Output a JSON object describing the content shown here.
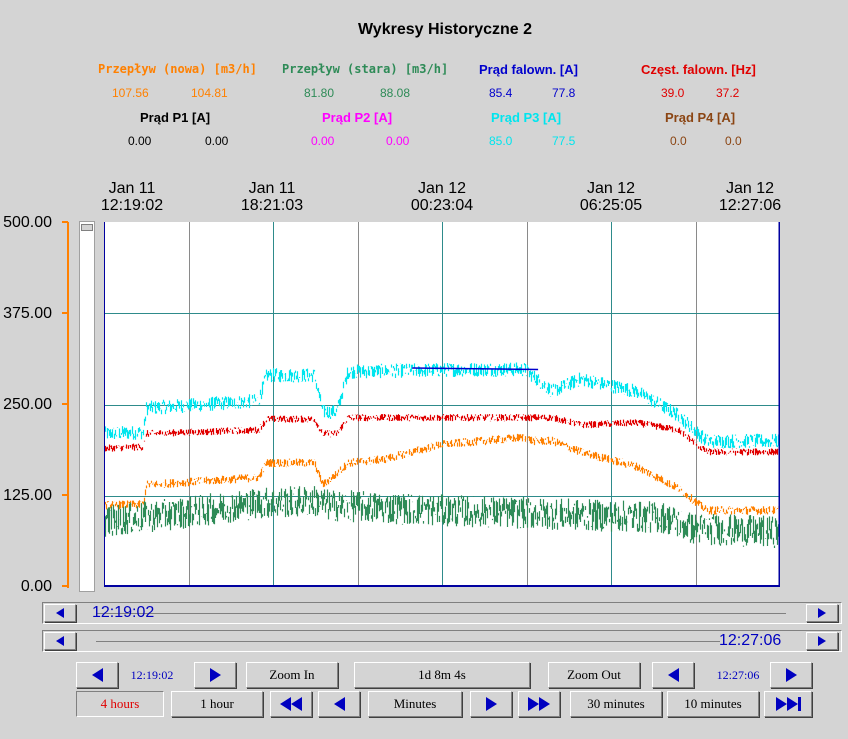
{
  "window": {
    "title": "Wykresy Historyczne 2"
  },
  "legend": [
    {
      "label": "Przepływ (nowa) [m3/h]",
      "color": "#ff8000",
      "v1": "107.56",
      "v2": "104.81"
    },
    {
      "label": "Przepływ (stara) [m3/h]",
      "color": "#2e8b57",
      "v1": "81.80",
      "v2": "88.08"
    },
    {
      "label": "Prąd falown. [A]",
      "color": "#0000cc",
      "v1": "85.4",
      "v2": "77.8"
    },
    {
      "label": "Częst. falown. [Hz]",
      "color": "#e00000",
      "v1": "39.0",
      "v2": "37.2"
    },
    {
      "label": "Prąd P1 [A]",
      "color": "#000000",
      "v1": "0.00",
      "v2": "0.00"
    },
    {
      "label": "Prąd P2 [A]",
      "color": "#ff00ff",
      "v1": "0.00",
      "v2": "0.00"
    },
    {
      "label": "Prąd P3 [A]",
      "color": "#00e5ee",
      "v1": "85.0",
      "v2": "77.5"
    },
    {
      "label": "Prąd P4 [A]",
      "color": "#8b4513",
      "v1": "0.0",
      "v2": "0.0"
    }
  ],
  "chart_data": {
    "type": "line",
    "x_ticks": [
      {
        "date": "Jan 11",
        "time": "12:19:02"
      },
      {
        "date": "Jan 11",
        "time": "18:21:03"
      },
      {
        "date": "Jan 12",
        "time": "00:23:04"
      },
      {
        "date": "Jan 12",
        "time": "06:25:05"
      },
      {
        "date": "Jan 12",
        "time": "12:27:06"
      }
    ],
    "y_ticks": [
      "500.00",
      "375.00",
      "250.00",
      "125.00",
      "0.00"
    ],
    "ylim": [
      0,
      500
    ],
    "xlim_hours": [
      0,
      24.135
    ],
    "grid": true,
    "series": [
      {
        "name": "Prąd P3 [A]",
        "color": "#00e5ee",
        "noise": 10,
        "x": [
          0,
          1.4,
          1.5,
          5.5,
          5.8,
          7.5,
          7.8,
          8.3,
          8.7,
          13.0,
          15.0,
          16.0,
          17.0,
          19.0,
          20.5,
          21.5,
          24.135
        ],
        "values": [
          210,
          212,
          245,
          255,
          290,
          290,
          240,
          240,
          295,
          298,
          298,
          268,
          285,
          268,
          235,
          200,
          200
        ]
      },
      {
        "name": "Prąd falown. [A]",
        "color": "#0000cc",
        "noise": 0,
        "x": [
          11.0,
          15.5
        ],
        "values": [
          300,
          298
        ]
      },
      {
        "name": "Częst. falown. [Hz]",
        "color": "#e00000",
        "noise": 5,
        "x": [
          0,
          1.4,
          1.5,
          5.5,
          5.8,
          7.5,
          7.8,
          8.3,
          8.7,
          16.0,
          17.0,
          19.0,
          20.5,
          21.5,
          24.135
        ],
        "values": [
          190,
          192,
          210,
          215,
          230,
          230,
          210,
          210,
          232,
          232,
          222,
          225,
          215,
          185,
          185
        ]
      },
      {
        "name": "Przepływ (nowa) [m3/h]",
        "color": "#ff8000",
        "noise": 6,
        "x": [
          0,
          1.4,
          1.5,
          5.5,
          5.8,
          7.5,
          7.8,
          8.3,
          8.7,
          10.0,
          12.0,
          15.0,
          15.3,
          16.0,
          17.0,
          19.0,
          20.5,
          21.5,
          24.135
        ],
        "values": [
          112,
          113,
          140,
          150,
          170,
          170,
          140,
          155,
          170,
          175,
          195,
          205,
          200,
          200,
          185,
          165,
          135,
          105,
          105
        ]
      },
      {
        "name": "Przepływ (stara) [m3/h]",
        "color": "#2e8b57",
        "noise": 22,
        "x": [
          0,
          2.5,
          5.5,
          7.5,
          8.0,
          12.0,
          16.0,
          20.0,
          21.0,
          24.135
        ],
        "values": [
          90,
          100,
          115,
          118,
          112,
          105,
          100,
          95,
          80,
          75
        ]
      }
    ]
  },
  "navigation": {
    "start_time": "12:19:02",
    "end_time": "12:27:06",
    "zoom_in": "Zoom In",
    "span": "1d 8m 4s",
    "zoom_out": "Zoom Out",
    "four_hours": "4 hours",
    "one_hour": "1 hour",
    "minutes": "Minutes",
    "thirty_minutes": "30 minutes",
    "ten_minutes": "10 minutes",
    "four_hours_color": "#e00000"
  },
  "scrollbars": {
    "top_value": "12:19:02",
    "bottom_value": "12:27:06"
  }
}
